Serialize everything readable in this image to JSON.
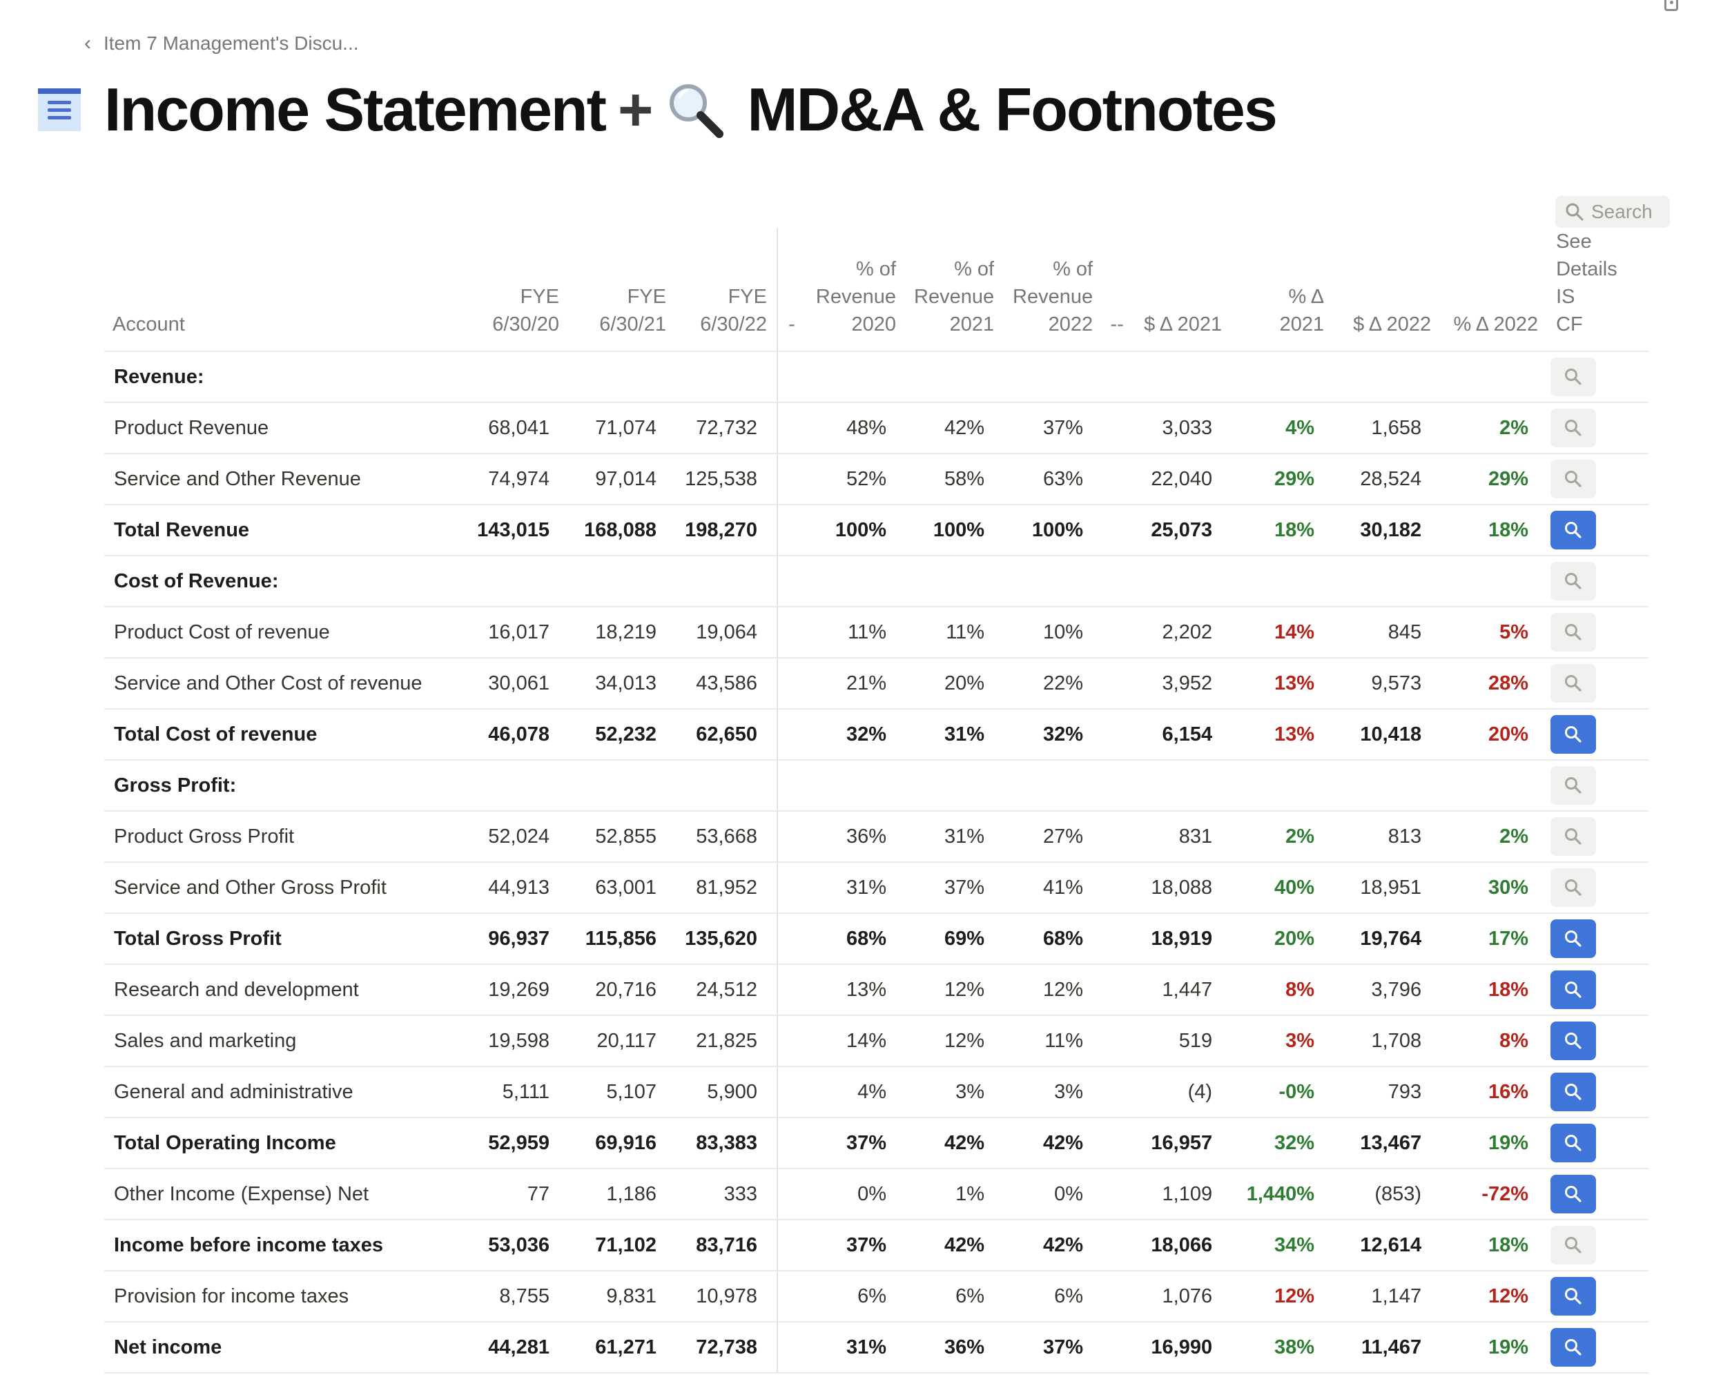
{
  "breadcrumb": {
    "label": "Item 7 Management's Discu..."
  },
  "title": {
    "part1": "Income Statement",
    "plus": "+",
    "part2": "MD&A & Footnotes"
  },
  "search": {
    "label": "Search"
  },
  "table": {
    "headers": {
      "account": "Account",
      "fye20": [
        "FYE",
        "6/30/20"
      ],
      "fye21": [
        "FYE",
        "6/30/21"
      ],
      "fye22": [
        "FYE",
        "6/30/22"
      ],
      "dash1": "-",
      "pct20": [
        "% of",
        "Revenue",
        "2020"
      ],
      "pct21": [
        "% of",
        "Revenue",
        "2021"
      ],
      "pct22": [
        "% of",
        "Revenue",
        "2022"
      ],
      "dash2": "--",
      "d21": "$ Δ 2021",
      "p21": "% Δ 2021",
      "d22": "$ Δ 2022",
      "p22": "% Δ 2022",
      "see": [
        "See",
        "Details IS",
        "CF"
      ]
    },
    "rows": [
      {
        "type": "header",
        "account": "Revenue:",
        "v20": "",
        "v21": "",
        "v22": "",
        "r20": "",
        "r21": "",
        "r22": "",
        "d21": "",
        "p21": "",
        "p21c": "",
        "d22": "",
        "p22": "",
        "p22c": "",
        "btn": "grey"
      },
      {
        "type": "normal",
        "account": "Product Revenue",
        "v20": "68,041",
        "v21": "71,074",
        "v22": "72,732",
        "r20": "48%",
        "r21": "42%",
        "r22": "37%",
        "d21": "3,033",
        "p21": "4%",
        "p21c": "pos",
        "d22": "1,658",
        "p22": "2%",
        "p22c": "pos",
        "btn": "grey"
      },
      {
        "type": "normal",
        "account": "Service and Other Revenue",
        "v20": "74,974",
        "v21": "97,014",
        "v22": "125,538",
        "r20": "52%",
        "r21": "58%",
        "r22": "63%",
        "d21": "22,040",
        "p21": "29%",
        "p21c": "pos",
        "d22": "28,524",
        "p22": "29%",
        "p22c": "pos",
        "btn": "grey"
      },
      {
        "type": "bold",
        "account": "Total Revenue",
        "v20": "143,015",
        "v21": "168,088",
        "v22": "198,270",
        "r20": "100%",
        "r21": "100%",
        "r22": "100%",
        "d21": "25,073",
        "p21": "18%",
        "p21c": "pos",
        "d22": "30,182",
        "p22": "18%",
        "p22c": "pos",
        "btn": "blue"
      },
      {
        "type": "header",
        "account": "Cost of Revenue:",
        "v20": "",
        "v21": "",
        "v22": "",
        "r20": "",
        "r21": "",
        "r22": "",
        "d21": "",
        "p21": "",
        "p21c": "",
        "d22": "",
        "p22": "",
        "p22c": "",
        "btn": "grey"
      },
      {
        "type": "normal",
        "account": "Product Cost of revenue",
        "v20": "16,017",
        "v21": "18,219",
        "v22": "19,064",
        "r20": "11%",
        "r21": "11%",
        "r22": "10%",
        "d21": "2,202",
        "p21": "14%",
        "p21c": "neg",
        "d22": "845",
        "p22": "5%",
        "p22c": "neg",
        "btn": "grey"
      },
      {
        "type": "normal",
        "account": "Service and Other Cost of revenue",
        "v20": "30,061",
        "v21": "34,013",
        "v22": "43,586",
        "r20": "21%",
        "r21": "20%",
        "r22": "22%",
        "d21": "3,952",
        "p21": "13%",
        "p21c": "neg",
        "d22": "9,573",
        "p22": "28%",
        "p22c": "neg",
        "btn": "grey"
      },
      {
        "type": "bold",
        "account": "Total Cost of revenue",
        "v20": "46,078",
        "v21": "52,232",
        "v22": "62,650",
        "r20": "32%",
        "r21": "31%",
        "r22": "32%",
        "d21": "6,154",
        "p21": "13%",
        "p21c": "neg",
        "d22": "10,418",
        "p22": "20%",
        "p22c": "neg",
        "btn": "blue"
      },
      {
        "type": "header",
        "account": "Gross Profit:",
        "v20": "",
        "v21": "",
        "v22": "",
        "r20": "",
        "r21": "",
        "r22": "",
        "d21": "",
        "p21": "",
        "p21c": "",
        "d22": "",
        "p22": "",
        "p22c": "",
        "btn": "grey"
      },
      {
        "type": "normal",
        "account": "Product Gross Profit",
        "v20": "52,024",
        "v21": "52,855",
        "v22": "53,668",
        "r20": "36%",
        "r21": "31%",
        "r22": "27%",
        "d21": "831",
        "p21": "2%",
        "p21c": "pos",
        "d22": "813",
        "p22": "2%",
        "p22c": "pos",
        "btn": "grey"
      },
      {
        "type": "normal",
        "account": "Service and Other Gross Profit",
        "v20": "44,913",
        "v21": "63,001",
        "v22": "81,952",
        "r20": "31%",
        "r21": "37%",
        "r22": "41%",
        "d21": "18,088",
        "p21": "40%",
        "p21c": "pos",
        "d22": "18,951",
        "p22": "30%",
        "p22c": "pos",
        "btn": "grey"
      },
      {
        "type": "bold",
        "account": "Total Gross Profit",
        "v20": "96,937",
        "v21": "115,856",
        "v22": "135,620",
        "r20": "68%",
        "r21": "69%",
        "r22": "68%",
        "d21": "18,919",
        "p21": "20%",
        "p21c": "pos",
        "d22": "19,764",
        "p22": "17%",
        "p22c": "pos",
        "btn": "blue"
      },
      {
        "type": "normal",
        "account": "Research and development",
        "v20": "19,269",
        "v21": "20,716",
        "v22": "24,512",
        "r20": "13%",
        "r21": "12%",
        "r22": "12%",
        "d21": "1,447",
        "p21": "8%",
        "p21c": "neg",
        "d22": "3,796",
        "p22": "18%",
        "p22c": "neg",
        "btn": "blue"
      },
      {
        "type": "normal",
        "account": "Sales and marketing",
        "v20": "19,598",
        "v21": "20,117",
        "v22": "21,825",
        "r20": "14%",
        "r21": "12%",
        "r22": "11%",
        "d21": "519",
        "p21": "3%",
        "p21c": "neg",
        "d22": "1,708",
        "p22": "8%",
        "p22c": "neg",
        "btn": "blue"
      },
      {
        "type": "normal",
        "account": "General and administrative",
        "v20": "5,111",
        "v21": "5,107",
        "v22": "5,900",
        "r20": "4%",
        "r21": "3%",
        "r22": "3%",
        "d21": "(4)",
        "p21": "-0%",
        "p21c": "pos",
        "d22": "793",
        "p22": "16%",
        "p22c": "neg",
        "btn": "blue"
      },
      {
        "type": "bold",
        "account": "Total Operating Income",
        "v20": "52,959",
        "v21": "69,916",
        "v22": "83,383",
        "r20": "37%",
        "r21": "42%",
        "r22": "42%",
        "d21": "16,957",
        "p21": "32%",
        "p21c": "pos",
        "d22": "13,467",
        "p22": "19%",
        "p22c": "pos",
        "btn": "blue"
      },
      {
        "type": "normal",
        "account": "Other Income (Expense) Net",
        "v20": "77",
        "v21": "1,186",
        "v22": "333",
        "r20": "0%",
        "r21": "1%",
        "r22": "0%",
        "d21": "1,109",
        "p21": "1,440%",
        "p21c": "pos",
        "d22": "(853)",
        "p22": "-72%",
        "p22c": "neg",
        "btn": "blue"
      },
      {
        "type": "bold",
        "account": "Income before income taxes",
        "v20": "53,036",
        "v21": "71,102",
        "v22": "83,716",
        "r20": "37%",
        "r21": "42%",
        "r22": "42%",
        "d21": "18,066",
        "p21": "34%",
        "p21c": "pos",
        "d22": "12,614",
        "p22": "18%",
        "p22c": "pos",
        "btn": "grey"
      },
      {
        "type": "normal",
        "account": "Provision for income taxes",
        "v20": "8,755",
        "v21": "9,831",
        "v22": "10,978",
        "r20": "6%",
        "r21": "6%",
        "r22": "6%",
        "d21": "1,076",
        "p21": "12%",
        "p21c": "neg",
        "d22": "1,147",
        "p22": "12%",
        "p22c": "neg",
        "btn": "blue"
      },
      {
        "type": "bold",
        "account": "Net income",
        "v20": "44,281",
        "v21": "61,271",
        "v22": "72,738",
        "r20": "31%",
        "r21": "36%",
        "r22": "37%",
        "d21": "16,990",
        "p21": "38%",
        "p21c": "pos",
        "d22": "11,467",
        "p22": "19%",
        "p22c": "pos",
        "btn": "blue"
      }
    ]
  },
  "colors": {
    "positive": "#2e7d32",
    "negative": "#b5241b",
    "button_blue": "#3f74d8",
    "button_grey": "#f1f1ef"
  }
}
